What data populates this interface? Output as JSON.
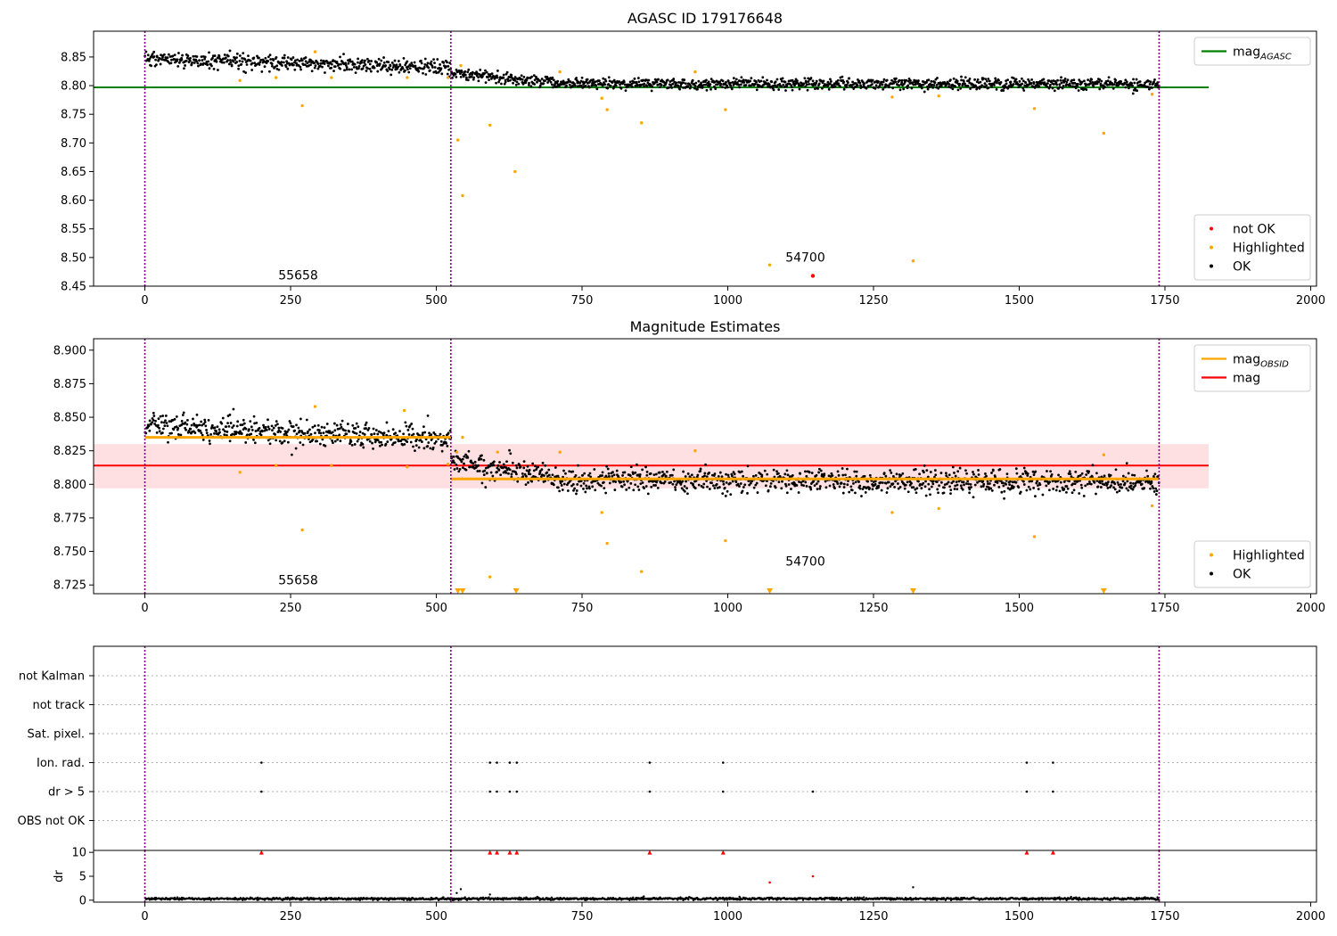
{
  "chart_data": [
    {
      "type": "scatter",
      "title": "AGASC ID 179176648",
      "xlim": [
        -88,
        2010
      ],
      "ylim": [
        8.45,
        8.895
      ],
      "xticks": [
        0,
        250,
        500,
        750,
        1000,
        1250,
        1500,
        1750,
        2000
      ],
      "yticks": [
        8.45,
        8.5,
        8.55,
        8.6,
        8.65,
        8.7,
        8.75,
        8.8,
        8.85
      ],
      "ytick_decimals": 2,
      "vlines_x": [
        0,
        525,
        1740
      ],
      "hlines": [
        {
          "name": "mag_AGASC",
          "y": 8.797,
          "x_range": [
            -88,
            1825
          ],
          "color": "#008000"
        }
      ],
      "ok_series": {
        "name": "OK",
        "color": "#000000",
        "segments": [
          {
            "x0": 0,
            "x1": 525,
            "y_start": 8.847,
            "y_end": 8.831,
            "noise": 0.012,
            "n": 500
          },
          {
            "x0": 525,
            "x1": 700,
            "y_start": 8.822,
            "y_end": 8.806,
            "noise": 0.009,
            "n": 170
          },
          {
            "x0": 700,
            "x1": 1740,
            "y_start": 8.804,
            "y_end": 8.802,
            "noise": 0.009,
            "n": 1030
          }
        ]
      },
      "highlighted": {
        "name": "Highlighted",
        "color": "#ffa500",
        "x": [
          163,
          225,
          270,
          292,
          320,
          450,
          520,
          537,
          542,
          545,
          592,
          635,
          712,
          784,
          793,
          852,
          944,
          996,
          1072,
          1282,
          1318,
          1362,
          1526,
          1645,
          1728
        ],
        "y": [
          8.809,
          8.814,
          8.765,
          8.859,
          8.814,
          8.814,
          8.814,
          8.705,
          8.835,
          8.608,
          8.731,
          8.65,
          8.824,
          8.778,
          8.758,
          8.735,
          8.824,
          8.758,
          8.487,
          8.78,
          8.494,
          8.782,
          8.76,
          8.717,
          8.785
        ]
      },
      "not_ok": {
        "name": "not OK",
        "color": "#ff0000",
        "x": [
          1146
        ],
        "y": [
          8.468
        ]
      },
      "annotations": [
        {
          "text": "55658",
          "x": 263,
          "y": 8.462
        },
        {
          "text": "54700",
          "x": 1133,
          "y": 8.493
        }
      ],
      "legends": [
        {
          "corner": "top-right",
          "items": [
            {
              "label": "mag",
              "sub": "AGASC",
              "kind": "line",
              "color": "#008000"
            }
          ]
        },
        {
          "corner": "bottom-right",
          "items": [
            {
              "label": "not OK",
              "kind": "dot",
              "color": "#ff0000"
            },
            {
              "label": "Highlighted",
              "kind": "dot",
              "color": "#ffa500"
            },
            {
              "label": "OK",
              "kind": "dot",
              "color": "#000000"
            }
          ]
        }
      ]
    },
    {
      "type": "scatter",
      "title": "Magnitude Estimates",
      "xlim": [
        -88,
        2010
      ],
      "ylim": [
        8.7185,
        8.9085
      ],
      "xticks": [
        0,
        250,
        500,
        750,
        1000,
        1250,
        1500,
        1750,
        2000
      ],
      "yticks": [
        8.725,
        8.75,
        8.775,
        8.8,
        8.825,
        8.85,
        8.875,
        8.9
      ],
      "ytick_decimals": 3,
      "vlines_x": [
        0,
        525,
        1740
      ],
      "band": {
        "y0": 8.797,
        "y1": 8.83,
        "x_range": [
          -88,
          1825
        ],
        "color": "#ffd5d8"
      },
      "hlines": [
        {
          "name": "mag",
          "y": 8.814,
          "x_range": [
            -88,
            1825
          ],
          "color": "#ff0000"
        }
      ],
      "obsid_segments": [
        {
          "x0": 0,
          "x1": 525,
          "y": 8.835,
          "color": "#ffa500"
        },
        {
          "x0": 525,
          "x1": 1740,
          "y": 8.804,
          "color": "#ffa500"
        }
      ],
      "ok_series": {
        "name": "OK",
        "color": "#000000",
        "segments": [
          {
            "x0": 0,
            "x1": 525,
            "y_start": 8.844,
            "y_end": 8.833,
            "noise": 0.009,
            "n": 500
          },
          {
            "x0": 525,
            "x1": 700,
            "y_start": 8.818,
            "y_end": 8.804,
            "noise": 0.008,
            "n": 170
          },
          {
            "x0": 700,
            "x1": 1740,
            "y_start": 8.803,
            "y_end": 8.802,
            "noise": 0.008,
            "n": 1030
          }
        ]
      },
      "highlighted": {
        "name": "Highlighted",
        "color": "#ffa500",
        "x": [
          163,
          225,
          270,
          292,
          320,
          445,
          450,
          520,
          535,
          545,
          592,
          605,
          712,
          784,
          793,
          852,
          944,
          996,
          1282,
          1362,
          1526,
          1645,
          1728
        ],
        "y": [
          8.809,
          8.814,
          8.766,
          8.858,
          8.814,
          8.855,
          8.813,
          8.815,
          8.824,
          8.835,
          8.731,
          8.824,
          8.824,
          8.779,
          8.756,
          8.735,
          8.825,
          8.758,
          8.779,
          8.782,
          8.761,
          8.822,
          8.784
        ]
      },
      "offscale_markers": {
        "color": "#ffa500",
        "y": 8.7205,
        "x": [
          537,
          545,
          637,
          1072,
          1318,
          1645
        ]
      },
      "annotations": [
        {
          "text": "55658",
          "x": 263,
          "y": 8.7255
        },
        {
          "text": "54700",
          "x": 1133,
          "y": 8.7395
        }
      ],
      "legends": [
        {
          "corner": "top-right",
          "items": [
            {
              "label": "mag",
              "sub": "OBSID",
              "kind": "line",
              "color": "#ffa500"
            },
            {
              "label": "mag",
              "kind": "line",
              "color": "#ff0000"
            }
          ]
        },
        {
          "corner": "bottom-right",
          "items": [
            {
              "label": "Highlighted",
              "kind": "dot",
              "color": "#ffa500"
            },
            {
              "label": "OK",
              "kind": "dot",
              "color": "#000000"
            }
          ]
        }
      ]
    },
    {
      "type": "scatter",
      "title": "",
      "xlim": [
        -88,
        2010
      ],
      "categories": [
        "not Kalman",
        "not track",
        "Sat. pixel.",
        "Ion. rad.",
        "dr > 5",
        "OBS not OK"
      ],
      "vlines_x": [
        0,
        525,
        1740
      ],
      "flags": [
        {
          "category": "Ion. rad.",
          "x": [
            200,
            592,
            604,
            626,
            638,
            866,
            992,
            1513,
            1558
          ]
        },
        {
          "category": "dr > 5",
          "x": [
            200,
            592,
            604,
            626,
            638,
            866,
            992,
            1146,
            1513,
            1558
          ]
        }
      ]
    },
    {
      "type": "scatter",
      "title": "",
      "xlim": [
        -88,
        2010
      ],
      "ylim": [
        -0.4,
        10.4
      ],
      "xticks": [
        0,
        250,
        500,
        750,
        1000,
        1250,
        1500,
        1750,
        2000
      ],
      "yticks": [
        0,
        5,
        10
      ],
      "ylabel": "dr",
      "vlines_x": [
        0,
        525,
        1740
      ],
      "baseline": {
        "color": "#000000",
        "x0": 0,
        "x1": 1740,
        "mean": 0.3,
        "noise": 0.12,
        "n": 1700
      },
      "extra_points": {
        "color": "#000000",
        "x": [
          535,
          542,
          592,
          856,
          1318
        ],
        "y": [
          1.5,
          2.3,
          1.2,
          0.8,
          2.7
        ]
      },
      "red_points": {
        "color": "#ff0000",
        "x": [
          1072,
          1146
        ],
        "y": [
          3.7,
          5.0
        ]
      },
      "capped_markers": {
        "color": "#ff0000",
        "y": 10,
        "x": [
          200,
          592,
          604,
          626,
          638,
          866,
          992,
          1513,
          1558
        ]
      }
    }
  ]
}
